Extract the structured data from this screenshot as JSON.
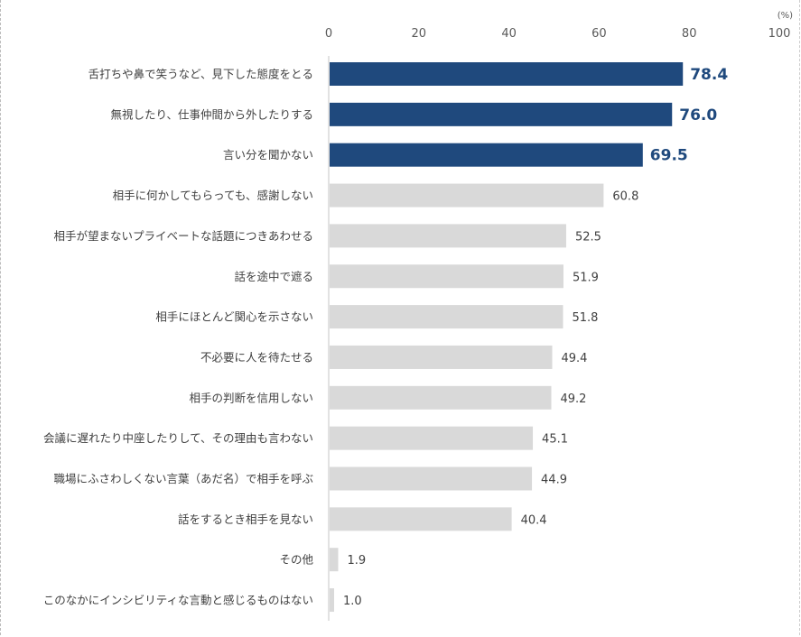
{
  "chart_data": {
    "type": "bar",
    "orientation": "horizontal",
    "unit_label": "(%)",
    "xlim": [
      0,
      100
    ],
    "ticks": [
      "0",
      "20",
      "40",
      "60",
      "80",
      "100"
    ],
    "grid": false,
    "colors": {
      "highlight": "#1f497d",
      "default": "#d9d9d9",
      "axis": "#d9d9d9"
    },
    "highlighted_count": 3,
    "categories": [
      "舌打ちや鼻で笑うなど、見下した態度をとる",
      "無視したり、仕事仲間から外したりする",
      "言い分を聞かない",
      "相手に何かしてもらっても、感謝しない",
      "相手が望まないプライベートな話題につきあわせる",
      "話を途中で遮る",
      "相手にほとんど関心を示さない",
      "不必要に人を待たせる",
      "相手の判断を信用しない",
      "会議に遅れたり中座したりして、その理由も言わない",
      "職場にふさわしくない言葉（あだ名）で相手を呼ぶ",
      "話をするとき相手を見ない",
      "その他",
      "このなかにインシビリティな言動と感じるものはない"
    ],
    "values": [
      78.4,
      76.0,
      69.5,
      60.8,
      52.5,
      51.9,
      51.8,
      49.4,
      49.2,
      45.1,
      44.9,
      40.4,
      1.9,
      1.0
    ],
    "value_labels": [
      "78.4",
      "76.0",
      "69.5",
      "60.8",
      "52.5",
      "51.9",
      "51.8",
      "49.4",
      "49.2",
      "45.1",
      "44.9",
      "40.4",
      "1.9",
      "1.0"
    ]
  }
}
